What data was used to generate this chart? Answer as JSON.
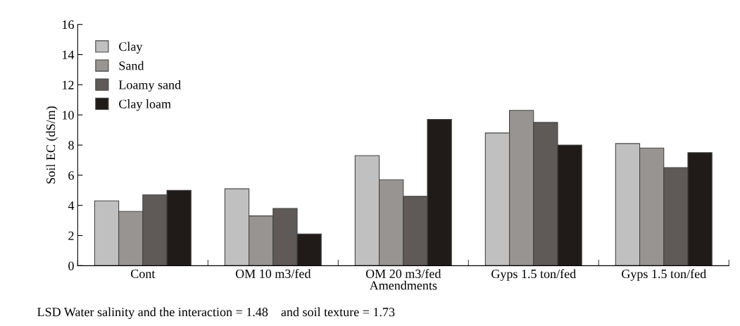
{
  "chart_data": {
    "type": "bar",
    "xlabel": "Amendments",
    "ylabel": "Soil EC (dS/m)",
    "categories": [
      "Cont",
      "OM 10 m3/fed",
      "OM 20 m3/fed",
      "Gyps 1.5 ton/fed",
      "Gyps 1.5 ton/fed"
    ],
    "series": [
      {
        "name": "Clay",
        "color": "#c0c0c0",
        "values": [
          4.3,
          5.1,
          7.3,
          8.8,
          8.1
        ]
      },
      {
        "name": "Sand",
        "color": "#989492",
        "values": [
          3.6,
          3.3,
          5.7,
          10.3,
          7.8
        ]
      },
      {
        "name": "Loamy sand",
        "color": "#5f5a58",
        "values": [
          4.7,
          3.8,
          4.6,
          9.5,
          6.5
        ]
      },
      {
        "name": "Clay loam",
        "color": "#201b19",
        "values": [
          5.0,
          2.1,
          9.7,
          8.0,
          7.5
        ]
      }
    ],
    "ylim": [
      0,
      16
    ],
    "yticks": [
      0,
      2,
      4,
      6,
      8,
      10,
      12,
      14,
      16
    ],
    "grid": false,
    "legend": "top left",
    "annotations": [
      "LSD Water salinity and the interaction = 1.48    and soil texture = 1.73"
    ]
  }
}
